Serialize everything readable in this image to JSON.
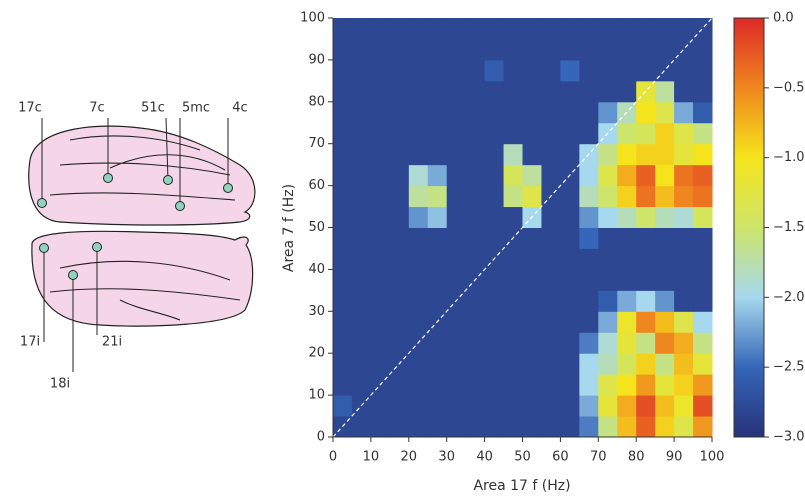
{
  "brain": {
    "top_labels": [
      "17c",
      "7c",
      "51c",
      "5mc",
      "4c"
    ],
    "bottom_labels": [
      "17i",
      "18i",
      "21i"
    ]
  },
  "chart_data": {
    "type": "heatmap",
    "x_label": "Area 17 f (Hz)",
    "y_label": "Area 7 f (Hz)",
    "xlim": [
      0,
      100
    ],
    "ylim": [
      0,
      100
    ],
    "xticks": [
      0,
      10,
      20,
      30,
      40,
      50,
      60,
      70,
      80,
      90,
      100
    ],
    "yticks": [
      0,
      10,
      20,
      30,
      40,
      50,
      60,
      70,
      80,
      90,
      100
    ],
    "clim": [
      -3,
      0
    ],
    "colormap": [
      "#27327a",
      "#3566b8",
      "#a6d8ee",
      "#cde56a",
      "#f5e41c",
      "#f0861f",
      "#dc2a27"
    ],
    "cticks": [
      {
        "value": 0,
        "label": "0.0"
      },
      {
        "value": -0.5,
        "label": "−0.5"
      },
      {
        "value": -1,
        "label": "−1.0"
      },
      {
        "value": -1.5,
        "label": "−1.5"
      },
      {
        "value": -2,
        "label": "−2.0"
      },
      {
        "value": -2.5,
        "label": "−2.5"
      },
      {
        "value": -3,
        "label": "−3.0"
      }
    ],
    "z": [
      [
        -2.8,
        -2.8,
        -2.8,
        -2.8,
        -2.8,
        -2.8,
        -2.8,
        -2.8,
        -2.8,
        -2.8,
        -2.8,
        -2.8,
        -2.8,
        -2.4,
        -1.6,
        -0.8,
        -0.3,
        -0.9,
        -1.3,
        -0.6
      ],
      [
        -2.6,
        -2.8,
        -2.8,
        -2.8,
        -2.8,
        -2.8,
        -2.8,
        -2.8,
        -2.8,
        -2.8,
        -2.8,
        -2.8,
        -2.8,
        -2.2,
        -1.2,
        -0.7,
        -0.2,
        -0.8,
        -1.1,
        -0.2
      ],
      [
        -2.8,
        -2.8,
        -2.8,
        -2.8,
        -2.8,
        -2.8,
        -2.8,
        -2.8,
        -2.8,
        -2.8,
        -2.8,
        -2.8,
        -2.8,
        -2.0,
        -1.3,
        -1.0,
        -0.6,
        -1.2,
        -0.9,
        -0.6
      ],
      [
        -2.8,
        -2.8,
        -2.8,
        -2.8,
        -2.8,
        -2.8,
        -2.8,
        -2.8,
        -2.8,
        -2.8,
        -2.8,
        -2.8,
        -2.8,
        -2.0,
        -1.8,
        -1.4,
        -0.9,
        -1.6,
        -0.8,
        -1.2
      ],
      [
        -2.8,
        -2.8,
        -2.8,
        -2.8,
        -2.8,
        -2.8,
        -2.8,
        -2.8,
        -2.8,
        -2.8,
        -2.8,
        -2.8,
        -2.8,
        -2.4,
        -1.9,
        -1.2,
        -1.6,
        -0.5,
        -0.7,
        -1.6
      ],
      [
        -2.8,
        -2.8,
        -2.8,
        -2.8,
        -2.8,
        -2.8,
        -2.8,
        -2.8,
        -2.8,
        -2.8,
        -2.8,
        -2.8,
        -2.8,
        -2.8,
        -2.2,
        -1.1,
        -0.5,
        -0.8,
        -1.3,
        -2.0
      ],
      [
        -2.8,
        -2.8,
        -2.8,
        -2.8,
        -2.8,
        -2.8,
        -2.8,
        -2.8,
        -2.8,
        -2.8,
        -2.8,
        -2.8,
        -2.8,
        -2.8,
        -2.6,
        -2.2,
        -2.0,
        -2.3,
        -2.8,
        -2.8
      ],
      [
        -2.8,
        -2.8,
        -2.8,
        -2.8,
        -2.8,
        -2.8,
        -2.8,
        -2.8,
        -2.8,
        -2.8,
        -2.8,
        -2.8,
        -2.8,
        -2.8,
        -2.8,
        -2.8,
        -2.8,
        -2.8,
        -2.8,
        -2.8
      ],
      [
        -2.8,
        -2.8,
        -2.8,
        -2.8,
        -2.8,
        -2.8,
        -2.8,
        -2.8,
        -2.8,
        -2.8,
        -2.8,
        -2.8,
        -2.8,
        -2.8,
        -2.8,
        -2.8,
        -2.8,
        -2.8,
        -2.8,
        -2.8
      ],
      [
        -2.8,
        -2.8,
        -2.8,
        -2.8,
        -2.8,
        -2.8,
        -2.8,
        -2.8,
        -2.8,
        -2.8,
        -2.8,
        -2.8,
        -2.8,
        -2.5,
        -2.8,
        -2.8,
        -2.8,
        -2.8,
        -2.8,
        -2.8
      ],
      [
        -2.8,
        -2.8,
        -2.8,
        -2.8,
        -2.3,
        -2.1,
        -2.8,
        -2.8,
        -2.8,
        -2.8,
        -2.0,
        -2.8,
        -2.8,
        -2.3,
        -2.0,
        -1.8,
        -1.5,
        -1.8,
        -1.9,
        -1.4
      ],
      [
        -2.8,
        -2.8,
        -2.8,
        -2.8,
        -1.7,
        -1.6,
        -2.8,
        -2.8,
        -2.8,
        -1.6,
        -1.3,
        -2.8,
        -2.8,
        -1.8,
        -1.5,
        -0.9,
        -0.4,
        -0.8,
        -0.5,
        -0.4
      ],
      [
        -2.8,
        -2.8,
        -2.8,
        -2.8,
        -1.9,
        -2.2,
        -2.8,
        -2.8,
        -2.8,
        -1.4,
        -1.7,
        -2.8,
        -2.8,
        -2.0,
        -1.3,
        -0.7,
        -0.3,
        -1.0,
        -0.4,
        -0.3
      ],
      [
        -2.8,
        -2.8,
        -2.8,
        -2.8,
        -2.8,
        -2.8,
        -2.8,
        -2.8,
        -2.8,
        -1.8,
        -2.8,
        -2.8,
        -2.8,
        -2.0,
        -1.6,
        -1.0,
        -0.9,
        -0.9,
        -1.2,
        -1.0
      ],
      [
        -2.8,
        -2.8,
        -2.8,
        -2.8,
        -2.8,
        -2.8,
        -2.8,
        -2.8,
        -2.8,
        -2.8,
        -2.8,
        -2.8,
        -2.8,
        -2.8,
        -2.0,
        -1.5,
        -1.4,
        -0.9,
        -1.3,
        -1.6
      ],
      [
        -2.8,
        -2.8,
        -2.8,
        -2.8,
        -2.8,
        -2.8,
        -2.8,
        -2.8,
        -2.8,
        -2.8,
        -2.8,
        -2.8,
        -2.8,
        -2.8,
        -2.3,
        -1.8,
        -1.0,
        -1.3,
        -2.2,
        -2.6
      ],
      [
        -2.8,
        -2.8,
        -2.8,
        -2.8,
        -2.8,
        -2.8,
        -2.8,
        -2.8,
        -2.8,
        -2.8,
        -2.8,
        -2.8,
        -2.8,
        -2.8,
        -2.8,
        -2.8,
        -1.2,
        -1.7,
        -2.8,
        -2.8
      ],
      [
        -2.8,
        -2.8,
        -2.8,
        -2.8,
        -2.8,
        -2.8,
        -2.8,
        -2.8,
        -2.6,
        -2.8,
        -2.8,
        -2.8,
        -2.5,
        -2.8,
        -2.8,
        -2.8,
        -2.8,
        -2.8,
        -2.8,
        -2.8
      ],
      [
        -2.8,
        -2.8,
        -2.8,
        -2.8,
        -2.8,
        -2.8,
        -2.8,
        -2.8,
        -2.8,
        -2.8,
        -2.8,
        -2.8,
        -2.8,
        -2.8,
        -2.8,
        -2.8,
        -2.8,
        -2.8,
        -2.8,
        -2.8
      ],
      [
        -2.8,
        -2.8,
        -2.8,
        -2.8,
        -2.8,
        -2.8,
        -2.8,
        -2.8,
        -2.8,
        -2.8,
        -2.8,
        -2.8,
        -2.8,
        -2.8,
        -2.8,
        -2.8,
        -2.8,
        -2.8,
        -2.8,
        -2.8
      ]
    ]
  }
}
